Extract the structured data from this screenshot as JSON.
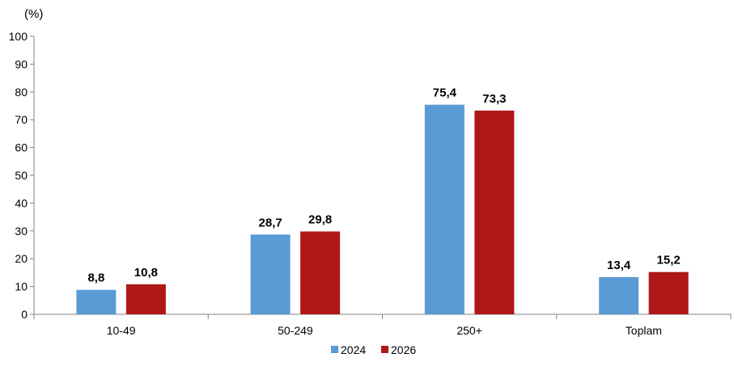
{
  "chart_data": {
    "type": "bar",
    "unit_label": "(%)",
    "categories": [
      "10-49",
      "50-249",
      "250+",
      "Toplam"
    ],
    "series": [
      {
        "name": "2024",
        "color": "#5b9bd5",
        "values": [
          8.8,
          28.7,
          75.4,
          13.4
        ],
        "labels": [
          "8,8",
          "28,7",
          "75,4",
          "13,4"
        ]
      },
      {
        "name": "2026",
        "color": "#b01717",
        "values": [
          10.8,
          29.8,
          73.3,
          15.2
        ],
        "labels": [
          "10,8",
          "29,8",
          "73,3",
          "15,2"
        ]
      }
    ],
    "ylim": [
      0,
      100
    ],
    "yticks": [
      "0",
      "10",
      "20",
      "30",
      "40",
      "50",
      "60",
      "70",
      "80",
      "90",
      "100"
    ],
    "grid": false,
    "legend_position": "bottom"
  }
}
